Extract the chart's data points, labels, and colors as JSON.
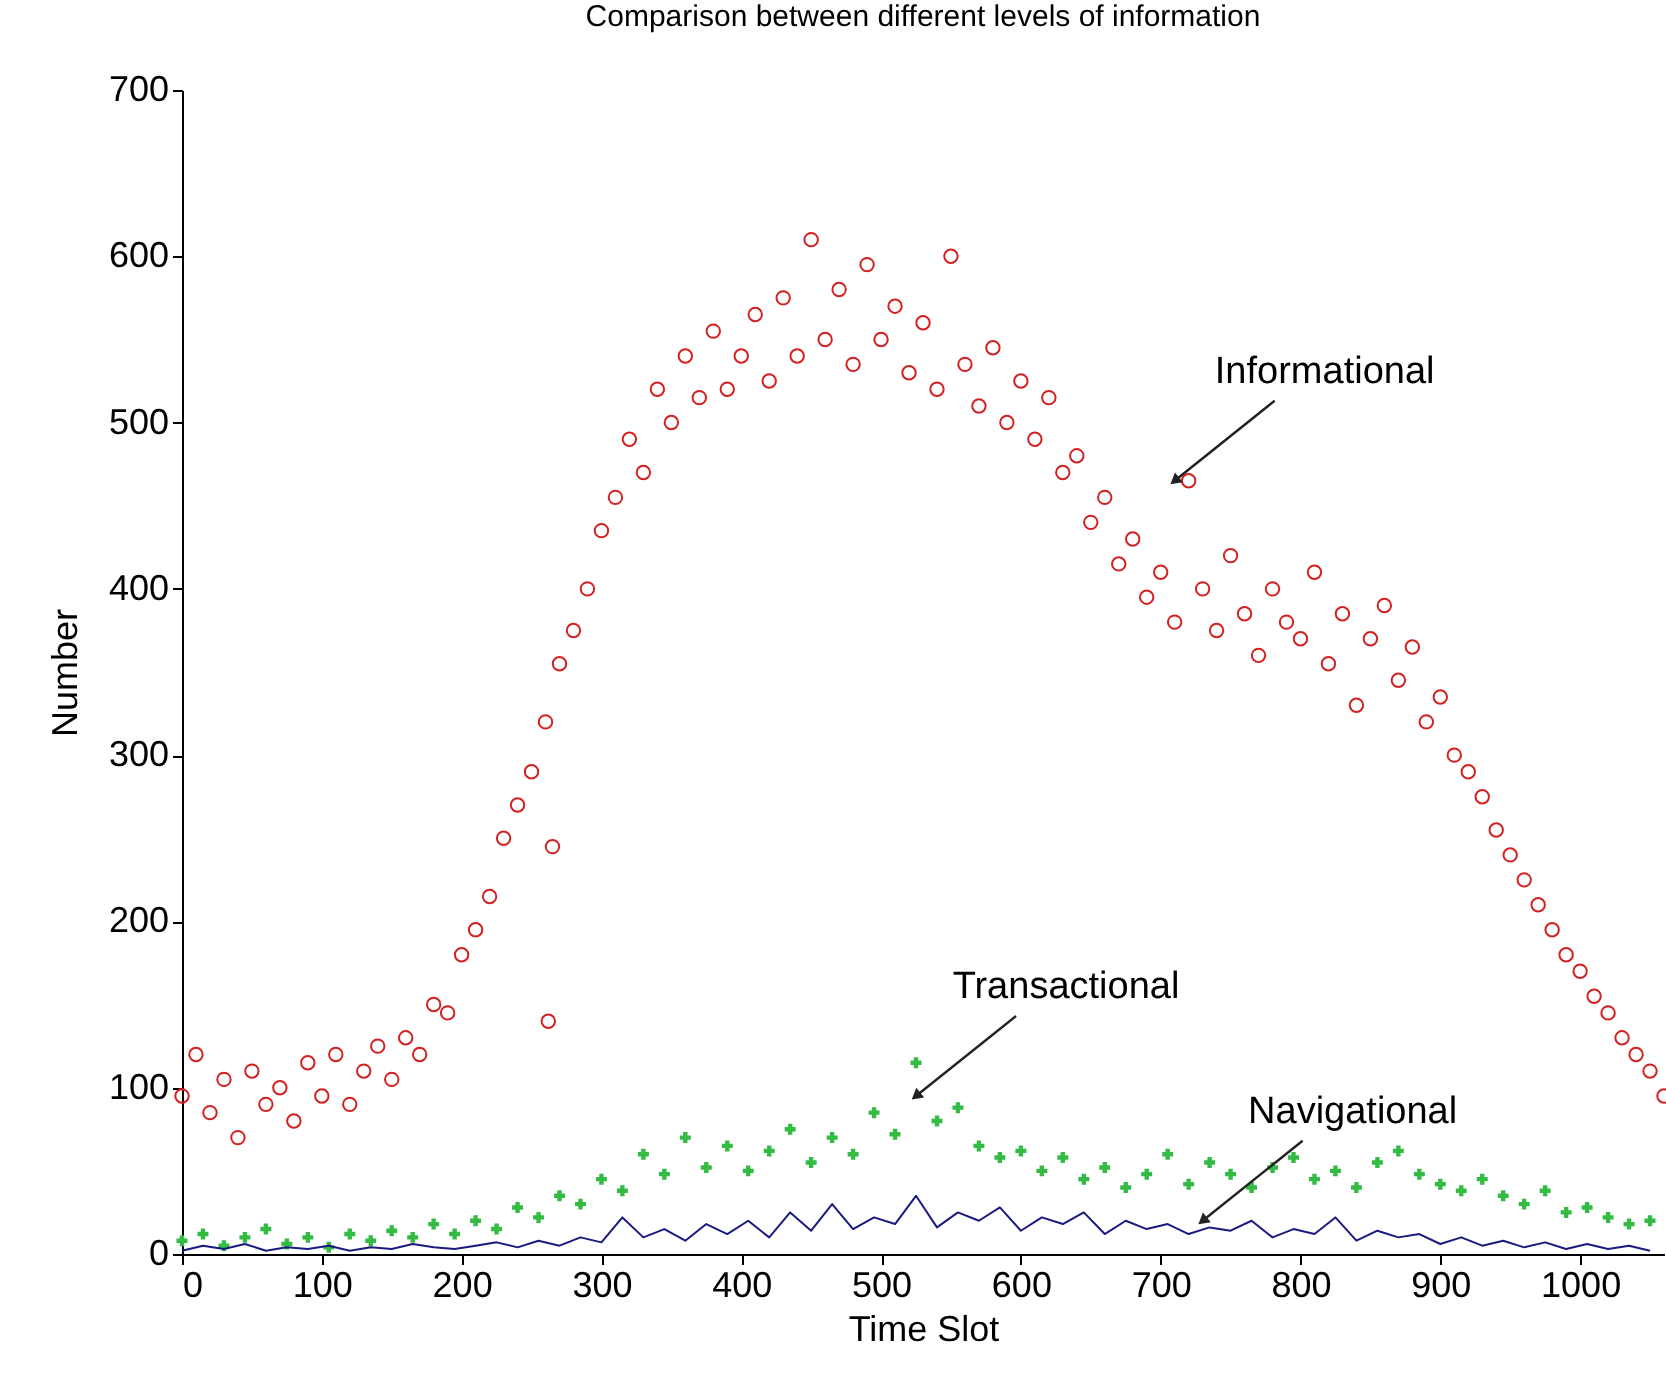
{
  "chart_data": {
    "type": "scatter",
    "title": "Comparison between different levels of information",
    "xlabel": "Time Slot",
    "ylabel": "Number",
    "xlim": [
      0,
      1060
    ],
    "xticks": [
      0,
      100,
      200,
      300,
      400,
      500,
      600,
      700,
      800,
      900,
      1000
    ],
    "ylim": [
      0,
      700
    ],
    "yticks": [
      0,
      100,
      200,
      300,
      400,
      500,
      600,
      700
    ],
    "grid": false,
    "series": [
      {
        "marker": "circle",
        "color": "#d42020",
        "x": [
          0,
          10,
          20,
          30,
          40,
          50,
          60,
          70,
          80,
          90,
          100,
          110,
          120,
          130,
          140,
          150,
          160,
          170,
          180,
          190,
          200,
          210,
          220,
          230,
          240,
          250,
          260,
          270,
          280,
          290,
          300,
          310,
          320,
          330,
          340,
          350,
          360,
          370,
          380,
          390,
          400,
          410,
          420,
          430,
          440,
          450,
          460,
          470,
          480,
          490,
          500,
          510,
          520,
          530,
          540,
          550,
          560,
          570,
          580,
          590,
          600,
          610,
          620,
          630,
          640,
          650,
          660,
          670,
          680,
          690,
          700,
          710,
          720,
          730,
          740,
          750,
          760,
          770,
          780,
          790,
          800,
          810,
          820,
          830,
          840,
          850,
          860,
          870,
          880,
          890,
          900,
          910,
          920,
          930,
          940,
          950,
          960,
          970,
          980,
          990,
          1000,
          1010,
          1020,
          1030,
          1040,
          1050,
          1060,
          265,
          262
        ],
        "values": [
          95,
          120,
          85,
          105,
          70,
          110,
          90,
          100,
          80,
          115,
          95,
          120,
          90,
          110,
          125,
          105,
          130,
          120,
          150,
          145,
          180,
          195,
          215,
          250,
          270,
          290,
          320,
          355,
          375,
          400,
          435,
          455,
          490,
          470,
          520,
          500,
          540,
          515,
          555,
          520,
          540,
          565,
          525,
          575,
          540,
          610,
          550,
          580,
          535,
          595,
          550,
          570,
          530,
          560,
          520,
          600,
          535,
          510,
          545,
          500,
          525,
          490,
          515,
          470,
          480,
          440,
          455,
          415,
          430,
          395,
          410,
          380,
          465,
          400,
          375,
          420,
          385,
          360,
          400,
          380,
          370,
          410,
          355,
          385,
          330,
          370,
          390,
          345,
          365,
          320,
          335,
          300,
          290,
          275,
          255,
          240,
          225,
          210,
          195,
          180,
          170,
          155,
          145,
          130,
          120,
          110,
          95,
          245,
          140
        ]
      },
      {
        "marker": "cross",
        "color": "#33bb44",
        "x": [
          0,
          15,
          30,
          45,
          60,
          75,
          90,
          105,
          120,
          135,
          150,
          165,
          180,
          195,
          210,
          225,
          240,
          255,
          270,
          285,
          300,
          315,
          330,
          345,
          360,
          375,
          390,
          405,
          420,
          435,
          450,
          465,
          480,
          495,
          510,
          525,
          540,
          555,
          570,
          585,
          600,
          615,
          630,
          645,
          660,
          675,
          690,
          705,
          720,
          735,
          750,
          765,
          780,
          795,
          810,
          825,
          840,
          855,
          870,
          885,
          900,
          915,
          930,
          945,
          960,
          975,
          990,
          1005,
          1020,
          1035,
          1050
        ],
        "values": [
          8,
          12,
          5,
          10,
          15,
          6,
          10,
          4,
          12,
          8,
          14,
          10,
          18,
          12,
          20,
          15,
          28,
          22,
          35,
          30,
          45,
          38,
          60,
          48,
          70,
          52,
          65,
          50,
          62,
          75,
          55,
          70,
          60,
          85,
          72,
          115,
          80,
          88,
          65,
          58,
          62,
          50,
          58,
          45,
          52,
          40,
          48,
          60,
          42,
          55,
          48,
          40,
          52,
          58,
          45,
          50,
          40,
          55,
          62,
          48,
          42,
          38,
          45,
          35,
          30,
          38,
          25,
          28,
          22,
          18,
          20
        ]
      },
      {
        "type": "line",
        "color": "#1a1a80",
        "x": [
          0,
          15,
          30,
          45,
          60,
          75,
          90,
          105,
          120,
          135,
          150,
          165,
          180,
          195,
          210,
          225,
          240,
          255,
          270,
          285,
          300,
          315,
          330,
          345,
          360,
          375,
          390,
          405,
          420,
          435,
          450,
          465,
          480,
          495,
          510,
          525,
          540,
          555,
          570,
          585,
          600,
          615,
          630,
          645,
          660,
          675,
          690,
          705,
          720,
          735,
          750,
          765,
          780,
          795,
          810,
          825,
          840,
          855,
          870,
          885,
          900,
          915,
          930,
          945,
          960,
          975,
          990,
          1005,
          1020,
          1035,
          1050
        ],
        "values": [
          2,
          5,
          3,
          6,
          2,
          4,
          3,
          5,
          2,
          4,
          3,
          6,
          4,
          3,
          5,
          7,
          4,
          8,
          5,
          10,
          7,
          22,
          10,
          15,
          8,
          18,
          12,
          20,
          10,
          25,
          14,
          30,
          15,
          22,
          18,
          35,
          16,
          25,
          20,
          28,
          14,
          22,
          18,
          25,
          12,
          20,
          15,
          18,
          12,
          16,
          14,
          20,
          10,
          15,
          12,
          22,
          8,
          14,
          10,
          12,
          6,
          10,
          5,
          8,
          4,
          7,
          3,
          6,
          3,
          5,
          2
        ]
      }
    ],
    "annotations": [
      {
        "text": "Informational",
        "x": 710,
        "y": 465
      },
      {
        "text": "Transactional",
        "x": 525,
        "y": 95
      },
      {
        "text": "Navigational",
        "x": 730,
        "y": 20
      }
    ]
  }
}
